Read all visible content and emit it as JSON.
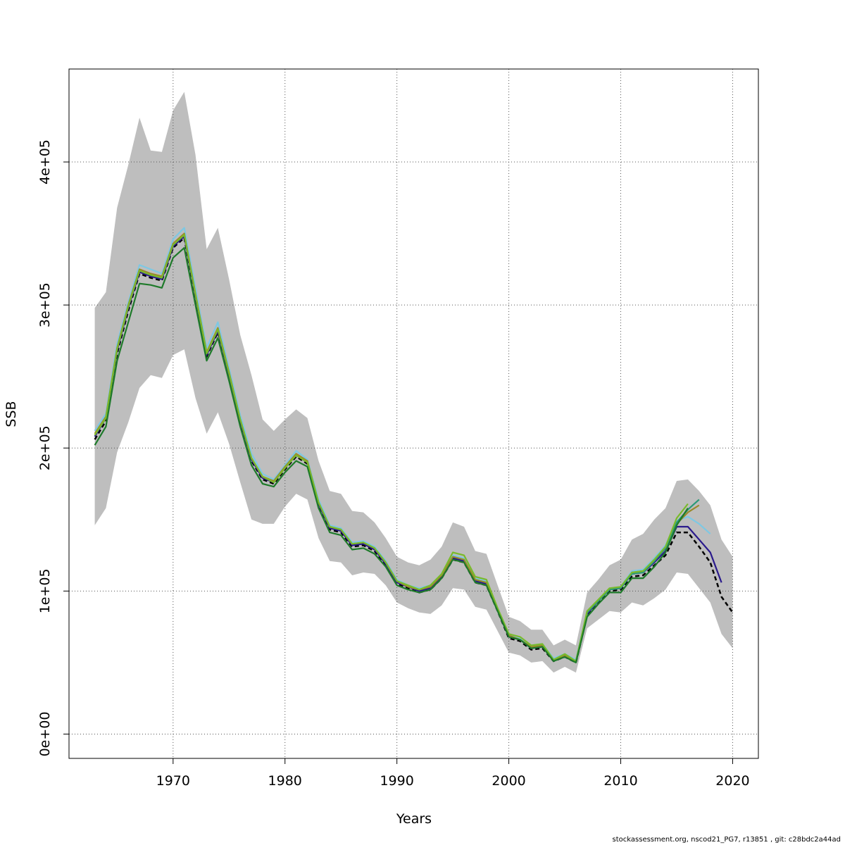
{
  "chart_data": {
    "type": "line",
    "title": "",
    "xlabel": "Years",
    "ylabel": "SSB",
    "xlim": [
      1960.7,
      2022.3
    ],
    "ylim": [
      -17000,
      465000
    ],
    "x_ticks": [
      1970,
      1980,
      1990,
      2000,
      2010,
      2020
    ],
    "x_tick_labels": [
      "1970",
      "1980",
      "1990",
      "2000",
      "2010",
      "2020"
    ],
    "y_ticks": [
      0,
      100000,
      200000,
      300000,
      400000
    ],
    "y_tick_labels": [
      "0e+00",
      "1e+05",
      "2e+05",
      "3e+05",
      "4e+05"
    ],
    "grid": true,
    "colors": {
      "band": "#bebebe",
      "grid": "#555555",
      "base": "#000000",
      "purple": "#2a1a8c",
      "lightblue": "#7ec8e3",
      "olive": "#9a8a2a",
      "teal": "#2a9a78",
      "green": "#1e7a2a",
      "limegreen": "#7aba2a"
    },
    "confidence_band": {
      "x": [
        1963,
        1964,
        1965,
        1966,
        1967,
        1968,
        1969,
        1970,
        1971,
        1972,
        1973,
        1974,
        1975,
        1976,
        1977,
        1978,
        1979,
        1980,
        1981,
        1982,
        1983,
        1984,
        1985,
        1986,
        1987,
        1988,
        1989,
        1990,
        1991,
        1992,
        1993,
        1994,
        1995,
        1996,
        1997,
        1998,
        1999,
        2000,
        2001,
        2002,
        2003,
        2004,
        2005,
        2006,
        2007,
        2008,
        2009,
        2010,
        2011,
        2012,
        2013,
        2014,
        2015,
        2016,
        2017,
        2018,
        2019,
        2020
      ],
      "upper": [
        298000,
        309000,
        368000,
        398000,
        431000,
        408000,
        407000,
        436000,
        449000,
        405000,
        339000,
        354000,
        318000,
        279000,
        251000,
        220000,
        212000,
        220000,
        227000,
        221000,
        191000,
        170000,
        168000,
        156000,
        155000,
        148000,
        137000,
        124000,
        120000,
        118000,
        122000,
        131000,
        148000,
        145000,
        128000,
        126000,
        104000,
        82000,
        79000,
        73000,
        73000,
        62000,
        66000,
        62000,
        99000,
        108000,
        118000,
        122000,
        136000,
        140000,
        150000,
        158000,
        177000,
        178000,
        170000,
        160000,
        136000,
        124000
      ],
      "lower": [
        146000,
        158000,
        197000,
        218000,
        242000,
        251000,
        249000,
        265000,
        269000,
        235000,
        210000,
        225000,
        203000,
        176000,
        150000,
        147000,
        147000,
        159000,
        168000,
        164000,
        137000,
        121000,
        120000,
        111000,
        113000,
        112000,
        104000,
        92000,
        88000,
        85000,
        84000,
        90000,
        102000,
        101000,
        89000,
        87000,
        72000,
        57000,
        55000,
        50000,
        51000,
        43000,
        47000,
        43000,
        74000,
        80000,
        86000,
        85000,
        92000,
        90000,
        95000,
        101000,
        113000,
        112000,
        102000,
        92000,
        70000,
        60000
      ]
    },
    "series": [
      {
        "color_key": "base",
        "dashed": true,
        "x": [
          1963,
          1964,
          1965,
          1966,
          1967,
          1968,
          1969,
          1970,
          1971,
          1972,
          1973,
          1974,
          1975,
          1976,
          1977,
          1978,
          1979,
          1980,
          1981,
          1982,
          1983,
          1984,
          1985,
          1986,
          1987,
          1988,
          1989,
          1990,
          1991,
          1992,
          1993,
          1994,
          1995,
          1996,
          1997,
          1998,
          1999,
          2000,
          2001,
          2002,
          2003,
          2004,
          2005,
          2006,
          2007,
          2008,
          2009,
          2010,
          2011,
          2012,
          2013,
          2014,
          2015,
          2016,
          2017,
          2018,
          2019,
          2020
        ],
        "values": [
          206000,
          219000,
          266000,
          296000,
          322000,
          319000,
          317000,
          340000,
          347000,
          305000,
          264000,
          281000,
          250000,
          218000,
          191000,
          178000,
          175000,
          185000,
          194000,
          189000,
          160000,
          143000,
          141000,
          131000,
          132000,
          128000,
          118000,
          105000,
          102000,
          99000,
          101000,
          109000,
          122000,
          120000,
          106000,
          104000,
          86000,
          67000,
          65000,
          59000,
          60000,
          51000,
          54000,
          50000,
          83000,
          92000,
          100000,
          101000,
          110000,
          111000,
          118000,
          125000,
          141000,
          141000,
          131000,
          120000,
          96000,
          85000
        ]
      },
      {
        "color_key": "purple",
        "dashed": false,
        "x": [
          1963,
          1964,
          1965,
          1966,
          1967,
          1968,
          1969,
          1970,
          1971,
          1972,
          1973,
          1974,
          1975,
          1976,
          1977,
          1978,
          1979,
          1980,
          1981,
          1982,
          1983,
          1984,
          1985,
          1986,
          1987,
          1988,
          1989,
          1990,
          1991,
          1992,
          1993,
          1994,
          1995,
          1996,
          1997,
          1998,
          1999,
          2000,
          2001,
          2002,
          2003,
          2004,
          2005,
          2006,
          2007,
          2008,
          2009,
          2010,
          2011,
          2012,
          2013,
          2014,
          2015,
          2016,
          2017,
          2018,
          2019
        ],
        "values": [
          208000,
          221000,
          268000,
          298000,
          323000,
          320000,
          318000,
          341000,
          348000,
          306000,
          265000,
          282000,
          251000,
          219000,
          192000,
          179000,
          176000,
          186000,
          195000,
          190000,
          161000,
          144000,
          142000,
          132000,
          133000,
          129000,
          119000,
          106000,
          103000,
          100000,
          102000,
          110000,
          123000,
          121000,
          107000,
          105000,
          87000,
          68000,
          66000,
          60000,
          61000,
          52000,
          55000,
          51000,
          84000,
          93000,
          101000,
          102000,
          112000,
          113000,
          120000,
          128000,
          145000,
          145000,
          136000,
          127000,
          106000
        ]
      },
      {
        "color_key": "lightblue",
        "dashed": false,
        "x": [
          1963,
          1964,
          1965,
          1966,
          1967,
          1968,
          1969,
          1970,
          1971,
          1972,
          1973,
          1974,
          1975,
          1976,
          1977,
          1978,
          1979,
          1980,
          1981,
          1982,
          1983,
          1984,
          1985,
          1986,
          1987,
          1988,
          1989,
          1990,
          1991,
          1992,
          1993,
          1994,
          1995,
          1996,
          1997,
          1998,
          1999,
          2000,
          2001,
          2002,
          2003,
          2004,
          2005,
          2006,
          2007,
          2008,
          2009,
          2010,
          2011,
          2012,
          2013,
          2014,
          2015,
          2016,
          2017,
          2018
        ],
        "values": [
          212000,
          224000,
          273000,
          302000,
          328000,
          325000,
          322000,
          346000,
          354000,
          312000,
          270000,
          288000,
          256000,
          223000,
          196000,
          182000,
          178000,
          188000,
          198000,
          192000,
          164000,
          146000,
          144000,
          134000,
          135000,
          131000,
          121000,
          108000,
          104000,
          102000,
          104000,
          112000,
          125000,
          123000,
          109000,
          107000,
          88000,
          70000,
          67000,
          62000,
          63000,
          53000,
          56000,
          52000,
          86000,
          94000,
          102000,
          103000,
          114000,
          115000,
          123000,
          132000,
          149000,
          152000,
          147000,
          140000
        ]
      },
      {
        "color_key": "olive",
        "dashed": false,
        "x": [
          1963,
          1964,
          1965,
          1966,
          1967,
          1968,
          1969,
          1970,
          1971,
          1972,
          1973,
          1974,
          1975,
          1976,
          1977,
          1978,
          1979,
          1980,
          1981,
          1982,
          1983,
          1984,
          1985,
          1986,
          1987,
          1988,
          1989,
          1990,
          1991,
          1992,
          1993,
          1994,
          1995,
          1996,
          1997,
          1998,
          1999,
          2000,
          2001,
          2002,
          2003,
          2004,
          2005,
          2006,
          2007,
          2008,
          2009,
          2010,
          2011,
          2012,
          2013,
          2014,
          2015,
          2016,
          2017
        ],
        "values": [
          210000,
          222000,
          270000,
          300000,
          325000,
          322000,
          320000,
          343000,
          350000,
          308000,
          267000,
          284000,
          253000,
          220000,
          193000,
          180000,
          177000,
          187000,
          196000,
          191000,
          162000,
          145000,
          143000,
          133000,
          134000,
          130000,
          120000,
          107000,
          103000,
          101000,
          103000,
          111000,
          124000,
          122000,
          108000,
          106000,
          87000,
          69000,
          66000,
          61000,
          62000,
          52000,
          55000,
          51000,
          85000,
          93000,
          101000,
          102000,
          113000,
          114000,
          121000,
          130000,
          147000,
          155000,
          160000
        ]
      },
      {
        "color_key": "teal",
        "dashed": false,
        "x": [
          2006,
          2007,
          2008,
          2009,
          2010,
          2011,
          2012,
          2013,
          2014,
          2015,
          2016,
          2017
        ],
        "values": [
          51000,
          85000,
          93000,
          101000,
          102000,
          112000,
          113000,
          121000,
          130000,
          148000,
          157000,
          164000
        ]
      },
      {
        "color_key": "limegreen",
        "dashed": false,
        "x": [
          1963,
          1964,
          1965,
          1966,
          1967,
          1968,
          1969,
          1970,
          1971,
          1972,
          1973,
          1974,
          1975,
          1976,
          1977,
          1978,
          1979,
          1980,
          1981,
          1982,
          1983,
          1984,
          1985,
          1986,
          1987,
          1988,
          1989,
          1990,
          1991,
          1992,
          1993,
          1994,
          1995,
          1996,
          1997,
          1998,
          1999,
          2000,
          2001,
          2002,
          2003,
          2004,
          2005,
          2006,
          2007,
          2008,
          2009,
          2010,
          2011,
          2012,
          2013,
          2014,
          2015,
          2016
        ],
        "values": [
          209000,
          221000,
          269000,
          299000,
          324000,
          321000,
          319000,
          342000,
          349000,
          307000,
          266000,
          283000,
          252000,
          220000,
          193000,
          180000,
          176000,
          186000,
          195000,
          190000,
          162000,
          145000,
          143000,
          133000,
          134000,
          130000,
          120000,
          107000,
          104000,
          101000,
          104000,
          112000,
          127000,
          125000,
          110000,
          108000,
          88000,
          70000,
          68000,
          62000,
          63000,
          52000,
          56000,
          51000,
          86000,
          94000,
          102000,
          103000,
          113000,
          114000,
          122000,
          131000,
          151000,
          161000
        ]
      },
      {
        "color_key": "green",
        "dashed": false,
        "x": [
          1963,
          1964,
          1965,
          1966,
          1967,
          1968,
          1969,
          1970,
          1971,
          1972,
          1973,
          1974,
          1975,
          1976,
          1977,
          1978,
          1979,
          1980,
          1981,
          1982,
          1983,
          1984,
          1985,
          1986,
          1987,
          1988,
          1989,
          1990,
          1991,
          1992,
          1993,
          1994,
          1995,
          1996,
          1997,
          1998,
          1999,
          2000,
          2001,
          2002,
          2003,
          2004,
          2005,
          2006,
          2007,
          2008,
          2009,
          2010,
          2011,
          2012,
          2013,
          2014,
          2015,
          2016
        ],
        "values": [
          202000,
          215000,
          261000,
          288000,
          315000,
          314000,
          312000,
          333000,
          340000,
          300000,
          261000,
          277000,
          247000,
          215000,
          188000,
          175000,
          173000,
          183000,
          191000,
          187000,
          158000,
          141000,
          139000,
          129000,
          130000,
          126000,
          117000,
          104000,
          101000,
          99000,
          101000,
          109000,
          122000,
          120000,
          106000,
          104000,
          86000,
          68000,
          66000,
          60000,
          61000,
          51000,
          54000,
          50000,
          82000,
          91000,
          99000,
          99000,
          109000,
          109000,
          117000,
          127000,
          146000,
          158000
        ]
      }
    ]
  },
  "footer": "stockassessment.org, nscod21_PG7, r13851 , git: c28bdc2a44ad"
}
